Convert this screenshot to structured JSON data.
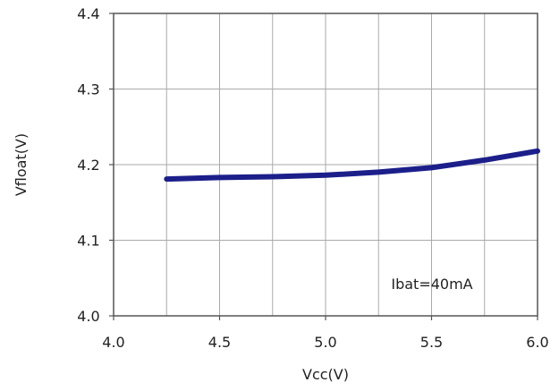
{
  "chart_data": {
    "type": "line",
    "title": "",
    "xlabel": "Vcc(V)",
    "ylabel": "Vfloat(V)",
    "xlim": [
      4.0,
      6.0
    ],
    "ylim": [
      4.0,
      4.4
    ],
    "x_ticks": [
      4.0,
      4.5,
      5.0,
      5.5,
      6.0
    ],
    "x_tick_labels": [
      "4.0",
      "4.5",
      "5.0",
      "5.5",
      "6.0"
    ],
    "x_minor_gridlines": [
      4.25,
      4.75,
      5.25,
      5.75
    ],
    "y_ticks": [
      4.0,
      4.1,
      4.2,
      4.3,
      4.4
    ],
    "y_tick_labels": [
      "4.0",
      "4.1",
      "4.2",
      "4.3",
      "4.4"
    ],
    "grid": true,
    "legend": "none",
    "annotation": "Ibat=40mA",
    "series": [
      {
        "color": "#1c1f8a",
        "x": [
          4.25,
          4.5,
          4.75,
          5.0,
          5.25,
          5.5,
          5.75,
          6.0
        ],
        "y": [
          4.181,
          4.183,
          4.184,
          4.186,
          4.19,
          4.196,
          4.206,
          4.218
        ]
      }
    ]
  }
}
